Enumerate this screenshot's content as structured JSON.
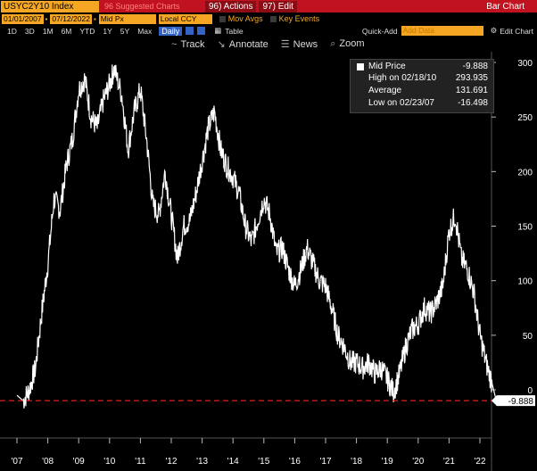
{
  "header": {
    "ticker": "USYC2Y10 Index",
    "suggested_label": "96 Suggested Charts",
    "actions_menu": "96) Actions",
    "edit_menu": "97) Edit",
    "window_title": "Bar Chart"
  },
  "options": {
    "start_date": "01/01/2007",
    "end_date": "07/12/2022",
    "price_field": "Mid Px",
    "currency": "Local CCY",
    "mov_avgs": "Mov Avgs",
    "key_events": "Key Events"
  },
  "range_bar": {
    "ranges": [
      "1D",
      "3D",
      "1M",
      "6M",
      "YTD",
      "1Y",
      "5Y",
      "Max"
    ],
    "periodicity": "Daily",
    "table": "Table",
    "quick_add": "Quick-Add",
    "add_data_placeholder": "Add Data",
    "edit_chart": "Edit Chart"
  },
  "toolbar": {
    "track": "Track",
    "annotate": "Annotate",
    "news": "News",
    "zoom": "Zoom"
  },
  "legend": {
    "series": "Mid Price",
    "last": "-9.888",
    "high_label": "High on 02/18/10",
    "high_value": "293.935",
    "avg_label": "Average",
    "avg_value": "131.691",
    "low_label": "Low on 02/23/07",
    "low_value": "-16.498"
  },
  "last_value_tag": "-9.888",
  "colors": {
    "accent": "#f5a623",
    "title_bar": "#c1121f",
    "series": "#ffffff",
    "last_line": "#e02020",
    "selected": "#3463c7"
  },
  "chart_data": {
    "type": "line",
    "ylim": [
      -25,
      310
    ],
    "yticks": [
      0,
      50,
      100,
      150,
      200,
      250,
      300
    ],
    "xticks": [
      "'07",
      "'08",
      "'09",
      "'10",
      "'11",
      "'12",
      "'13",
      "'14",
      "'15",
      "'16",
      "'17",
      "'18",
      "'19",
      "'20",
      "'21",
      "'22"
    ],
    "last_value": -9.888,
    "x": [
      2007.0,
      2007.2,
      2007.4,
      2007.6,
      2007.8,
      2008.0,
      2008.2,
      2008.4,
      2008.6,
      2008.8,
      2009.0,
      2009.2,
      2009.4,
      2009.6,
      2009.8,
      2010.0,
      2010.15,
      2010.4,
      2010.6,
      2010.8,
      2011.0,
      2011.2,
      2011.4,
      2011.6,
      2011.8,
      2012.0,
      2012.2,
      2012.4,
      2012.6,
      2012.8,
      2013.0,
      2013.2,
      2013.4,
      2013.6,
      2013.8,
      2014.0,
      2014.2,
      2014.4,
      2014.6,
      2014.8,
      2015.0,
      2015.2,
      2015.4,
      2015.6,
      2015.8,
      2016.0,
      2016.2,
      2016.4,
      2016.6,
      2016.8,
      2017.0,
      2017.2,
      2017.4,
      2017.6,
      2017.8,
      2018.0,
      2018.2,
      2018.4,
      2018.6,
      2018.8,
      2019.0,
      2019.2,
      2019.4,
      2019.6,
      2019.8,
      2020.0,
      2020.2,
      2020.4,
      2020.6,
      2020.8,
      2021.0,
      2021.2,
      2021.4,
      2021.6,
      2021.8,
      2022.0,
      2022.2,
      2022.4,
      2022.53
    ],
    "values": [
      -5,
      -10,
      0,
      20,
      70,
      115,
      175,
      165,
      205,
      230,
      275,
      285,
      250,
      240,
      265,
      280,
      293.9,
      270,
      220,
      255,
      275,
      230,
      170,
      160,
      200,
      160,
      120,
      150,
      155,
      180,
      210,
      240,
      255,
      220,
      205,
      195,
      180,
      150,
      135,
      155,
      175,
      160,
      125,
      130,
      110,
      95,
      110,
      130,
      115,
      100,
      95,
      75,
      50,
      40,
      25,
      25,
      20,
      25,
      15,
      20,
      10,
      -2,
      15,
      40,
      55,
      60,
      75,
      70,
      80,
      95,
      145,
      160,
      120,
      110,
      90,
      50,
      25,
      5,
      -9.9
    ]
  }
}
